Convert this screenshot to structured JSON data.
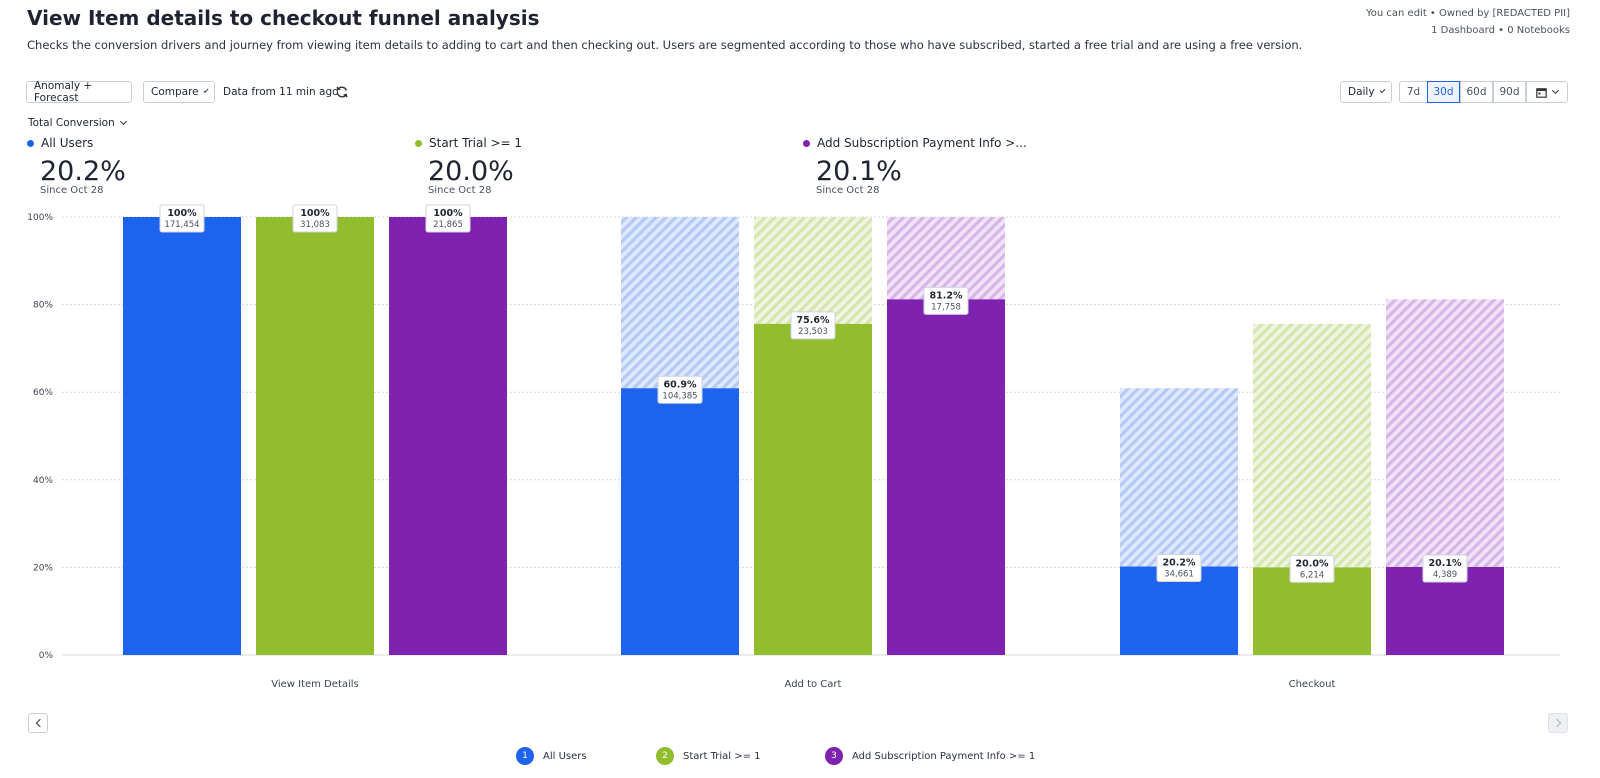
{
  "header": {
    "title": "View Item details to checkout funnel analysis",
    "description": "Checks the conversion drivers and journey from viewing item details to adding to cart and then checking out. Users are segmented according to those who have subscribed, started a free trial and are using a free version.",
    "owner_line": "You can edit • Owned by [REDACTED PII]",
    "counts_line": "1 Dashboard • 0 Notebooks"
  },
  "toolbar": {
    "anomaly_label": "Anomaly + Forecast",
    "compare_label": "Compare",
    "data_age": "Data from 11 min ago",
    "interval_label": "Daily",
    "ranges": [
      "7d",
      "30d",
      "60d",
      "90d"
    ],
    "active_range": "30d",
    "metric_label": "Total Conversion"
  },
  "kpis": [
    {
      "name": "All Users",
      "value": "20.2%",
      "since": "Since Oct 28",
      "color": "#1d63ed"
    },
    {
      "name": "Start Trial >= 1",
      "value": "20.0%",
      "since": "Since Oct 28",
      "color": "#92bd2f"
    },
    {
      "name": "Add Subscription Payment Info >...",
      "value": "20.1%",
      "since": "Since Oct 28",
      "color": "#7f22b0"
    }
  ],
  "legend": [
    {
      "num": "1",
      "label": "All Users",
      "color": "#1d63ed"
    },
    {
      "num": "2",
      "label": "Start Trial >= 1",
      "color": "#92bd2f"
    },
    {
      "num": "3",
      "label": "Add Subscription Payment Info >= 1",
      "color": "#7f22b0"
    }
  ],
  "chart_data": {
    "type": "bar",
    "categories": [
      "View Item Details",
      "Add to Cart",
      "Checkout"
    ],
    "y_ticks": [
      "0%",
      "20%",
      "40%",
      "60%",
      "80%",
      "100%"
    ],
    "ylim": [
      0,
      100
    ],
    "grid": true,
    "series": [
      {
        "name": "All Users",
        "color": "#1d63ed",
        "light": "#c6d6f8",
        "values": [
          100,
          60.9,
          20.2
        ],
        "labels": [
          "100%",
          "60.9%",
          "20.2%"
        ],
        "counts": [
          "171,454",
          "104,385",
          "34,661"
        ]
      },
      {
        "name": "Start Trial >= 1",
        "color": "#92bd2f",
        "light": "#e1edc5",
        "values": [
          100,
          75.6,
          20.0
        ],
        "labels": [
          "100%",
          "75.6%",
          "20.0%"
        ],
        "counts": [
          "31,083",
          "23,503",
          "6,214"
        ]
      },
      {
        "name": "Add Subscription Payment Info >= 1",
        "color": "#7f22b0",
        "light": "#e1c8ee",
        "values": [
          100,
          81.2,
          20.1
        ],
        "labels": [
          "100%",
          "81.2%",
          "20.1%"
        ],
        "counts": [
          "21,865",
          "17,758",
          "4,389"
        ]
      }
    ]
  }
}
